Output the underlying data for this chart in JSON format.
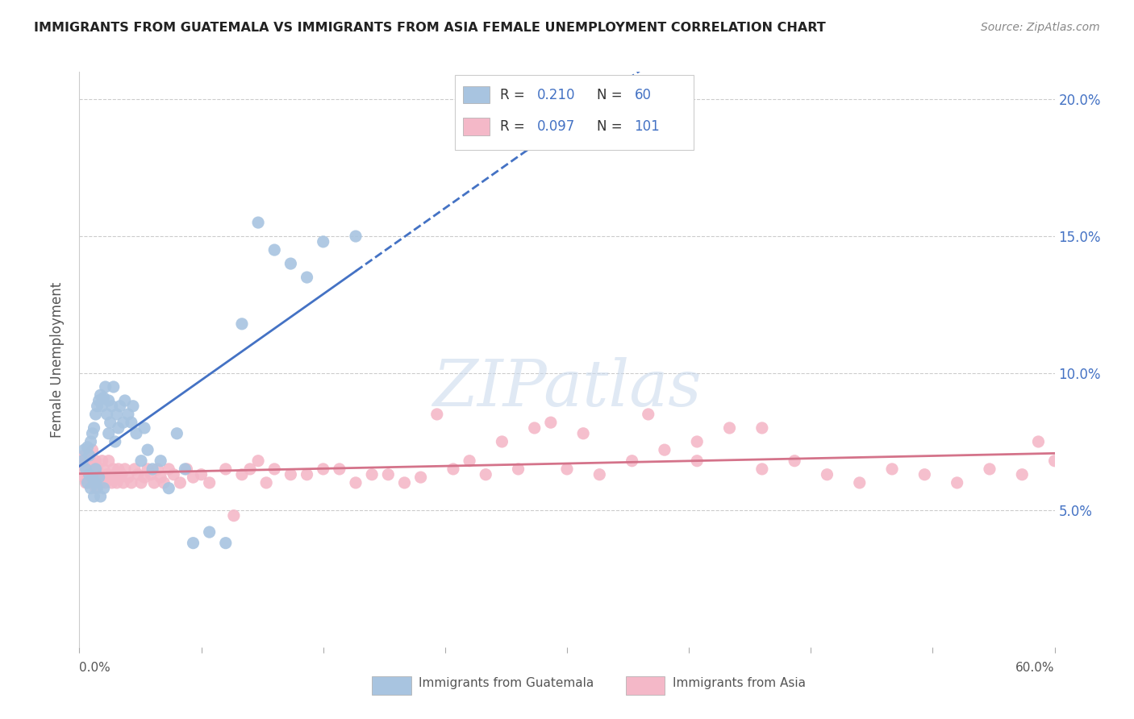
{
  "title": "IMMIGRANTS FROM GUATEMALA VS IMMIGRANTS FROM ASIA FEMALE UNEMPLOYMENT CORRELATION CHART",
  "source": "Source: ZipAtlas.com",
  "ylabel": "Female Unemployment",
  "y_ticks": [
    0.05,
    0.1,
    0.15,
    0.2
  ],
  "y_tick_labels": [
    "5.0%",
    "10.0%",
    "15.0%",
    "20.0%"
  ],
  "xlim": [
    0.0,
    0.6
  ],
  "ylim": [
    0.0,
    0.21
  ],
  "r_guatemala": 0.21,
  "n_guatemala": 60,
  "r_asia": 0.097,
  "n_asia": 101,
  "color_guatemala": "#a8c4e0",
  "color_asia": "#f4b8c8",
  "line_color_guatemala": "#4472c4",
  "line_color_asia": "#d4738a",
  "background_color": "#ffffff",
  "grid_color": "#cccccc",
  "text_color": "#333333",
  "axis_label_color": "#555555",
  "right_axis_color": "#4472c4",
  "guatemala_x": [
    0.002,
    0.003,
    0.004,
    0.005,
    0.005,
    0.006,
    0.006,
    0.007,
    0.007,
    0.008,
    0.008,
    0.009,
    0.009,
    0.01,
    0.01,
    0.01,
    0.011,
    0.011,
    0.012,
    0.012,
    0.013,
    0.013,
    0.014,
    0.015,
    0.015,
    0.016,
    0.017,
    0.018,
    0.018,
    0.019,
    0.02,
    0.021,
    0.022,
    0.023,
    0.024,
    0.025,
    0.027,
    0.028,
    0.03,
    0.032,
    0.033,
    0.035,
    0.038,
    0.04,
    0.042,
    0.045,
    0.05,
    0.055,
    0.06,
    0.065,
    0.07,
    0.08,
    0.09,
    0.1,
    0.11,
    0.12,
    0.13,
    0.14,
    0.15,
    0.17
  ],
  "guatemala_y": [
    0.068,
    0.072,
    0.065,
    0.073,
    0.06,
    0.07,
    0.063,
    0.075,
    0.058,
    0.078,
    0.062,
    0.08,
    0.055,
    0.085,
    0.065,
    0.06,
    0.088,
    0.058,
    0.09,
    0.062,
    0.092,
    0.055,
    0.088,
    0.091,
    0.058,
    0.095,
    0.085,
    0.09,
    0.078,
    0.082,
    0.088,
    0.095,
    0.075,
    0.085,
    0.08,
    0.088,
    0.082,
    0.09,
    0.085,
    0.082,
    0.088,
    0.078,
    0.068,
    0.08,
    0.072,
    0.065,
    0.068,
    0.058,
    0.078,
    0.065,
    0.038,
    0.042,
    0.038,
    0.118,
    0.155,
    0.145,
    0.14,
    0.135,
    0.148,
    0.15
  ],
  "asia_x": [
    0.001,
    0.002,
    0.003,
    0.003,
    0.004,
    0.004,
    0.005,
    0.005,
    0.006,
    0.006,
    0.007,
    0.007,
    0.008,
    0.008,
    0.009,
    0.009,
    0.01,
    0.01,
    0.011,
    0.012,
    0.013,
    0.014,
    0.015,
    0.015,
    0.016,
    0.017,
    0.018,
    0.019,
    0.02,
    0.021,
    0.022,
    0.023,
    0.024,
    0.025,
    0.026,
    0.027,
    0.028,
    0.03,
    0.032,
    0.034,
    0.036,
    0.038,
    0.04,
    0.042,
    0.044,
    0.046,
    0.048,
    0.05,
    0.052,
    0.055,
    0.058,
    0.062,
    0.066,
    0.07,
    0.075,
    0.08,
    0.09,
    0.1,
    0.11,
    0.12,
    0.14,
    0.16,
    0.18,
    0.2,
    0.22,
    0.24,
    0.26,
    0.28,
    0.3,
    0.32,
    0.34,
    0.36,
    0.38,
    0.4,
    0.42,
    0.44,
    0.46,
    0.48,
    0.5,
    0.52,
    0.54,
    0.56,
    0.58,
    0.6,
    0.38,
    0.42,
    0.35,
    0.31,
    0.29,
    0.27,
    0.25,
    0.23,
    0.21,
    0.19,
    0.17,
    0.15,
    0.13,
    0.115,
    0.105,
    0.095,
    0.59
  ],
  "asia_y": [
    0.065,
    0.068,
    0.062,
    0.07,
    0.06,
    0.068,
    0.065,
    0.063,
    0.07,
    0.062,
    0.068,
    0.06,
    0.065,
    0.072,
    0.063,
    0.06,
    0.068,
    0.058,
    0.065,
    0.063,
    0.06,
    0.068,
    0.065,
    0.062,
    0.06,
    0.063,
    0.068,
    0.062,
    0.06,
    0.065,
    0.063,
    0.06,
    0.065,
    0.062,
    0.063,
    0.06,
    0.065,
    0.062,
    0.06,
    0.065,
    0.063,
    0.06,
    0.062,
    0.065,
    0.063,
    0.06,
    0.065,
    0.062,
    0.06,
    0.065,
    0.063,
    0.06,
    0.065,
    0.062,
    0.063,
    0.06,
    0.065,
    0.063,
    0.068,
    0.065,
    0.063,
    0.065,
    0.063,
    0.06,
    0.085,
    0.068,
    0.075,
    0.08,
    0.065,
    0.063,
    0.068,
    0.072,
    0.075,
    0.08,
    0.065,
    0.068,
    0.063,
    0.06,
    0.065,
    0.063,
    0.06,
    0.065,
    0.063,
    0.068,
    0.068,
    0.08,
    0.085,
    0.078,
    0.082,
    0.065,
    0.063,
    0.065,
    0.062,
    0.063,
    0.06,
    0.065,
    0.063,
    0.06,
    0.065,
    0.048,
    0.075
  ]
}
